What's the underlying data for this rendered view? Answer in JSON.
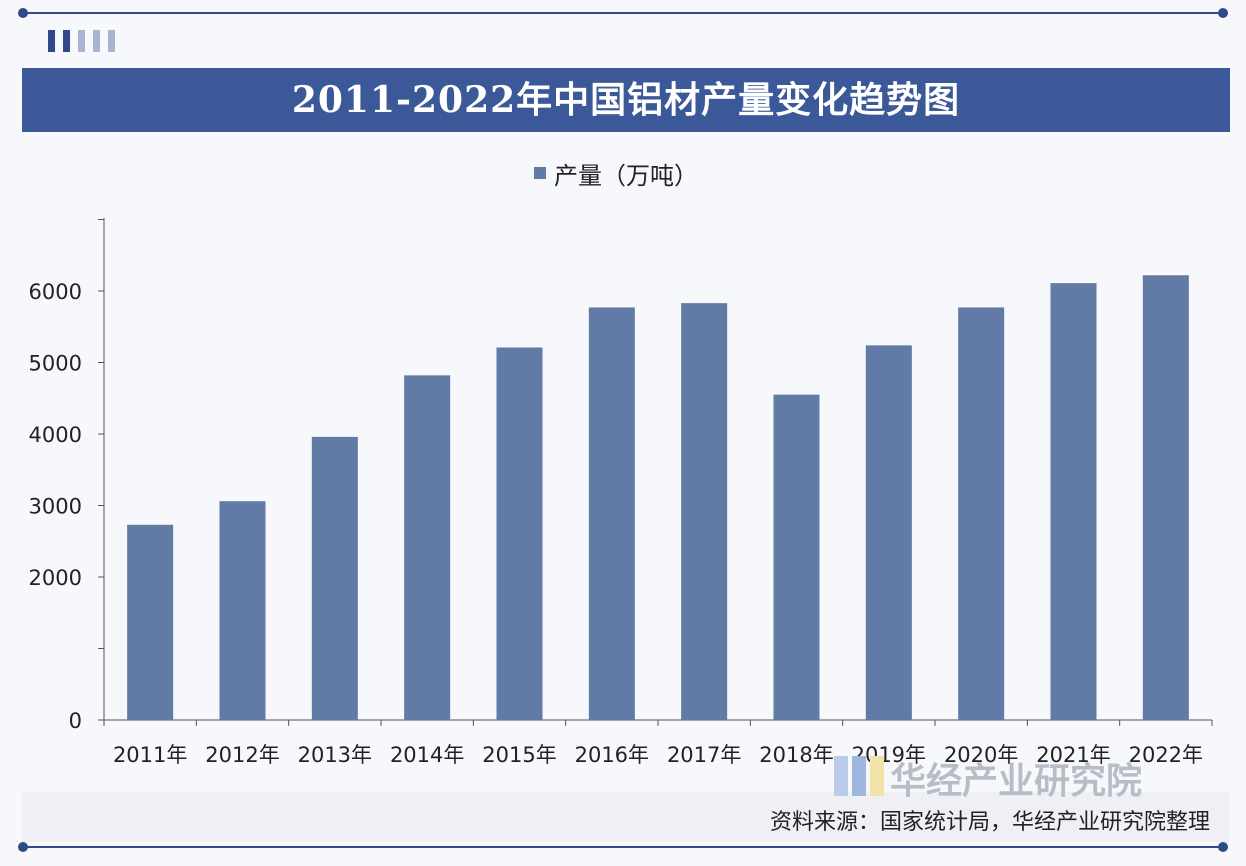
{
  "chart_data": {
    "type": "bar",
    "title": "2011-2022年中国铝材产量变化趋势图",
    "legend": "产量（万吨）",
    "legend_position": "top",
    "categories": [
      "2011年",
      "2012年",
      "2013年",
      "2014年",
      "2015年",
      "2016年",
      "2017年",
      "2018年",
      "2019年",
      "2020年",
      "2021年",
      "2022年"
    ],
    "series": [
      {
        "name": "产量（万吨）",
        "values": [
          2730,
          3060,
          3960,
          4820,
          5210,
          5770,
          5830,
          4550,
          5240,
          5770,
          6110,
          6220
        ]
      }
    ],
    "yticks": [
      0,
      2000,
      3000,
      4000,
      5000,
      6000
    ],
    "ylim": [
      0,
      7000
    ],
    "grid": false,
    "bar_color": "#617aa6"
  },
  "source": "资料来源：国家统计局，华经产业研究院整理",
  "watermark": "华经产业研究院",
  "colors": {
    "title_bg": "#3b5998",
    "accent": "#2f4a86"
  }
}
